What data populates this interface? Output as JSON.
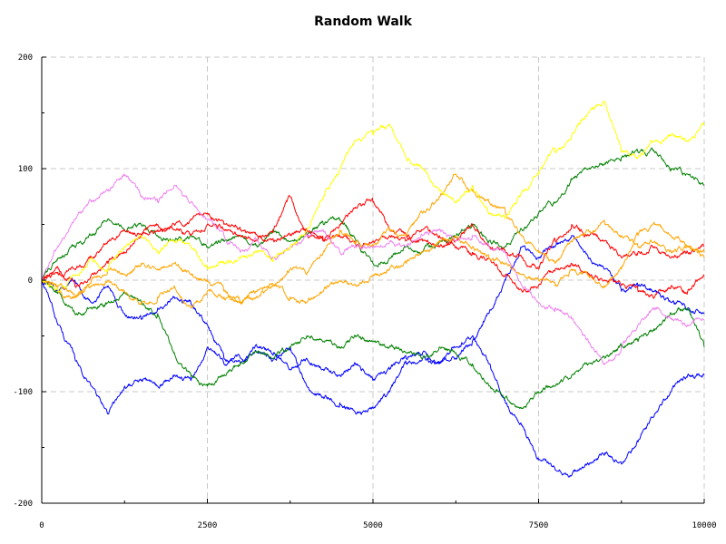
{
  "chart_data": {
    "type": "line",
    "title": "Random Walk",
    "xlabel": "",
    "ylabel": "",
    "xlim": [
      0,
      10000
    ],
    "ylim": [
      -200,
      200
    ],
    "x_ticks": [
      0,
      2500,
      5000,
      7500,
      10000
    ],
    "y_ticks": [
      -200,
      -100,
      0,
      100,
      200
    ],
    "grid": true,
    "legend": "none",
    "series": [
      {
        "color": "#0000ff",
        "x": [
          0,
          250,
          500,
          750,
          1000,
          1250,
          1500,
          1750,
          2000,
          2250,
          2500,
          2750,
          3000,
          3250,
          3500,
          3750,
          4000,
          4250,
          4500,
          4750,
          5000,
          5250,
          5500,
          5750,
          6000,
          6250,
          6500,
          6750,
          7000,
          7250,
          7500,
          7750,
          8000,
          8250,
          8500,
          8750,
          9000,
          9250,
          9500,
          9750,
          10000
        ],
        "y": [
          0,
          -40,
          -70,
          -95,
          -120,
          -95,
          -90,
          -95,
          -85,
          -90,
          -60,
          -75,
          -70,
          -65,
          -70,
          -60,
          -95,
          -105,
          -110,
          -120,
          -115,
          -100,
          -75,
          -70,
          -75,
          -60,
          -50,
          -75,
          -110,
          -130,
          -160,
          -170,
          -175,
          -165,
          -155,
          -165,
          -145,
          -120,
          -100,
          -85,
          -85
        ]
      },
      {
        "color": "#0000ff",
        "x": [
          0,
          250,
          500,
          750,
          1000,
          1250,
          1500,
          1750,
          2000,
          2250,
          2500,
          2750,
          3000,
          3250,
          3500,
          3750,
          4000,
          4250,
          4500,
          4750,
          5000,
          5250,
          5500,
          5750,
          6000,
          6250,
          6500,
          6750,
          7000,
          7250,
          7500,
          7750,
          8000,
          8250,
          8500,
          8750,
          9000,
          9250,
          9500,
          9750,
          10000
        ],
        "y": [
          0,
          -10,
          0,
          -20,
          -5,
          -30,
          -35,
          -25,
          -15,
          -20,
          -40,
          -70,
          -75,
          -60,
          -65,
          -80,
          -70,
          -80,
          -85,
          -75,
          -90,
          -80,
          -70,
          -65,
          -75,
          -70,
          -55,
          -30,
          0,
          30,
          20,
          30,
          40,
          20,
          10,
          -10,
          -5,
          -10,
          -20,
          -25,
          -30
        ]
      },
      {
        "color": "#008000",
        "x": [
          0,
          250,
          500,
          750,
          1000,
          1250,
          1500,
          1750,
          2000,
          2250,
          2500,
          2750,
          3000,
          3250,
          3500,
          3750,
          4000,
          4250,
          4500,
          4750,
          5000,
          5250,
          5500,
          5750,
          6000,
          6250,
          6500,
          6750,
          7000,
          7250,
          7500,
          7750,
          8000,
          8250,
          8500,
          8750,
          9000,
          9250,
          9500,
          9750,
          10000
        ],
        "y": [
          0,
          20,
          30,
          40,
          55,
          45,
          50,
          40,
          35,
          40,
          30,
          35,
          40,
          30,
          45,
          35,
          40,
          50,
          55,
          35,
          15,
          20,
          30,
          25,
          35,
          40,
          50,
          35,
          30,
          45,
          60,
          70,
          90,
          100,
          105,
          110,
          115,
          115,
          100,
          95,
          85
        ]
      },
      {
        "color": "#008000",
        "x": [
          0,
          250,
          500,
          750,
          1000,
          1250,
          1500,
          1750,
          2000,
          2250,
          2500,
          2750,
          3000,
          3250,
          3500,
          3750,
          4000,
          4250,
          4500,
          4750,
          5000,
          5250,
          5500,
          5750,
          6000,
          6250,
          6500,
          6750,
          7000,
          7250,
          7500,
          7750,
          8000,
          8250,
          8500,
          8750,
          9000,
          9250,
          9500,
          9750,
          10000
        ],
        "y": [
          0,
          -10,
          -30,
          -25,
          -20,
          -10,
          -20,
          -30,
          -65,
          -85,
          -95,
          -85,
          -75,
          -65,
          -70,
          -60,
          -50,
          -55,
          -60,
          -50,
          -55,
          -60,
          -65,
          -70,
          -60,
          -65,
          -75,
          -95,
          -105,
          -115,
          -100,
          -95,
          -85,
          -75,
          -70,
          -60,
          -55,
          -45,
          -30,
          -25,
          -60
        ]
      },
      {
        "color": "#ff0000",
        "x": [
          0,
          250,
          500,
          750,
          1000,
          1250,
          1500,
          1750,
          2000,
          2250,
          2500,
          2750,
          3000,
          3250,
          3500,
          3750,
          4000,
          4250,
          4500,
          4750,
          5000,
          5250,
          5500,
          5750,
          6000,
          6250,
          6500,
          6750,
          7000,
          7250,
          7500,
          7750,
          8000,
          8250,
          8500,
          8750,
          9000,
          9250,
          9500,
          9750,
          10000
        ],
        "y": [
          0,
          10,
          -5,
          5,
          15,
          25,
          40,
          50,
          45,
          40,
          50,
          45,
          40,
          35,
          45,
          75,
          40,
          35,
          50,
          65,
          70,
          45,
          40,
          35,
          30,
          35,
          50,
          30,
          25,
          20,
          10,
          35,
          50,
          40,
          35,
          20,
          25,
          30,
          20,
          25,
          30
        ]
      },
      {
        "color": "#ff0000",
        "x": [
          0,
          250,
          500,
          750,
          1000,
          1250,
          1500,
          1750,
          2000,
          2250,
          2500,
          2750,
          3000,
          3250,
          3500,
          3750,
          4000,
          4250,
          4500,
          4750,
          5000,
          5250,
          5500,
          5750,
          6000,
          6250,
          6500,
          6750,
          7000,
          7250,
          7500,
          7750,
          8000,
          8250,
          8500,
          8750,
          9000,
          9250,
          9500,
          9750,
          10000
        ],
        "y": [
          0,
          5,
          10,
          20,
          35,
          45,
          40,
          45,
          50,
          55,
          60,
          50,
          45,
          40,
          35,
          40,
          45,
          35,
          40,
          30,
          35,
          40,
          35,
          45,
          40,
          30,
          25,
          20,
          5,
          -10,
          -5,
          10,
          15,
          5,
          0,
          -5,
          -10,
          -15,
          -5,
          -10,
          5
        ]
      },
      {
        "color": "#ffa500",
        "x": [
          0,
          250,
          500,
          750,
          1000,
          1250,
          1500,
          1750,
          2000,
          2250,
          2500,
          2750,
          3000,
          3250,
          3500,
          3750,
          4000,
          4250,
          4500,
          4750,
          5000,
          5250,
          5500,
          5750,
          6000,
          6250,
          6500,
          6750,
          7000,
          7250,
          7500,
          7750,
          8000,
          8250,
          8500,
          8750,
          9000,
          9250,
          9500,
          9750,
          10000
        ],
        "y": [
          0,
          -10,
          -15,
          0,
          10,
          5,
          15,
          10,
          15,
          5,
          0,
          -10,
          -20,
          -15,
          -5,
          10,
          5,
          25,
          45,
          35,
          30,
          45,
          40,
          60,
          75,
          95,
          80,
          70,
          60,
          40,
          25,
          15,
          35,
          45,
          50,
          40,
          30,
          35,
          25,
          30,
          25
        ]
      },
      {
        "color": "#ffa500",
        "x": [
          0,
          250,
          500,
          750,
          1000,
          1250,
          1500,
          1750,
          2000,
          2250,
          2500,
          2750,
          3000,
          3250,
          3500,
          3750,
          4000,
          4250,
          4500,
          4750,
          5000,
          5250,
          5500,
          5750,
          6000,
          6250,
          6500,
          6750,
          7000,
          7250,
          7500,
          7750,
          8000,
          8250,
          8500,
          8750,
          9000,
          9250,
          9500,
          9750,
          10000
        ],
        "y": [
          0,
          -5,
          -15,
          -5,
          0,
          -10,
          -20,
          -15,
          -5,
          -25,
          -10,
          -15,
          -20,
          -10,
          -5,
          -15,
          -20,
          -10,
          0,
          -5,
          5,
          10,
          15,
          25,
          35,
          40,
          30,
          20,
          15,
          5,
          0,
          -5,
          10,
          5,
          -5,
          10,
          40,
          50,
          40,
          30,
          20
        ]
      },
      {
        "color": "#ee82ee",
        "x": [
          0,
          250,
          500,
          750,
          1000,
          1250,
          1500,
          1750,
          2000,
          2250,
          2500,
          2750,
          3000,
          3250,
          3500,
          3750,
          4000,
          4250,
          4500,
          4750,
          5000,
          5250,
          5500,
          5750,
          6000,
          6250,
          6500,
          6750,
          7000,
          7250,
          7500,
          7750,
          8000,
          8250,
          8500,
          8750,
          9000,
          9250,
          9500,
          9750,
          10000
        ],
        "y": [
          0,
          30,
          55,
          70,
          80,
          95,
          75,
          70,
          85,
          70,
          55,
          40,
          25,
          35,
          20,
          30,
          40,
          45,
          25,
          30,
          30,
          35,
          30,
          40,
          45,
          35,
          40,
          30,
          25,
          -5,
          -20,
          -25,
          -35,
          -55,
          -75,
          -60,
          -40,
          -25,
          -35,
          -40,
          -35
        ]
      },
      {
        "color": "#ffff00",
        "x": [
          0,
          250,
          500,
          750,
          1000,
          1250,
          1500,
          1750,
          2000,
          2250,
          2500,
          2750,
          3000,
          3250,
          3500,
          3750,
          4000,
          4250,
          4500,
          4750,
          5000,
          5250,
          5500,
          5750,
          6000,
          6250,
          6500,
          6750,
          7000,
          7250,
          7500,
          7750,
          8000,
          8250,
          8500,
          8750,
          9000,
          9250,
          9500,
          9750,
          10000
        ],
        "y": [
          0,
          -10,
          5,
          20,
          10,
          30,
          40,
          25,
          35,
          30,
          10,
          15,
          20,
          25,
          20,
          30,
          45,
          75,
          100,
          125,
          130,
          140,
          110,
          100,
          80,
          70,
          85,
          60,
          55,
          80,
          95,
          115,
          130,
          150,
          160,
          115,
          110,
          125,
          130,
          125,
          140
        ]
      }
    ]
  }
}
